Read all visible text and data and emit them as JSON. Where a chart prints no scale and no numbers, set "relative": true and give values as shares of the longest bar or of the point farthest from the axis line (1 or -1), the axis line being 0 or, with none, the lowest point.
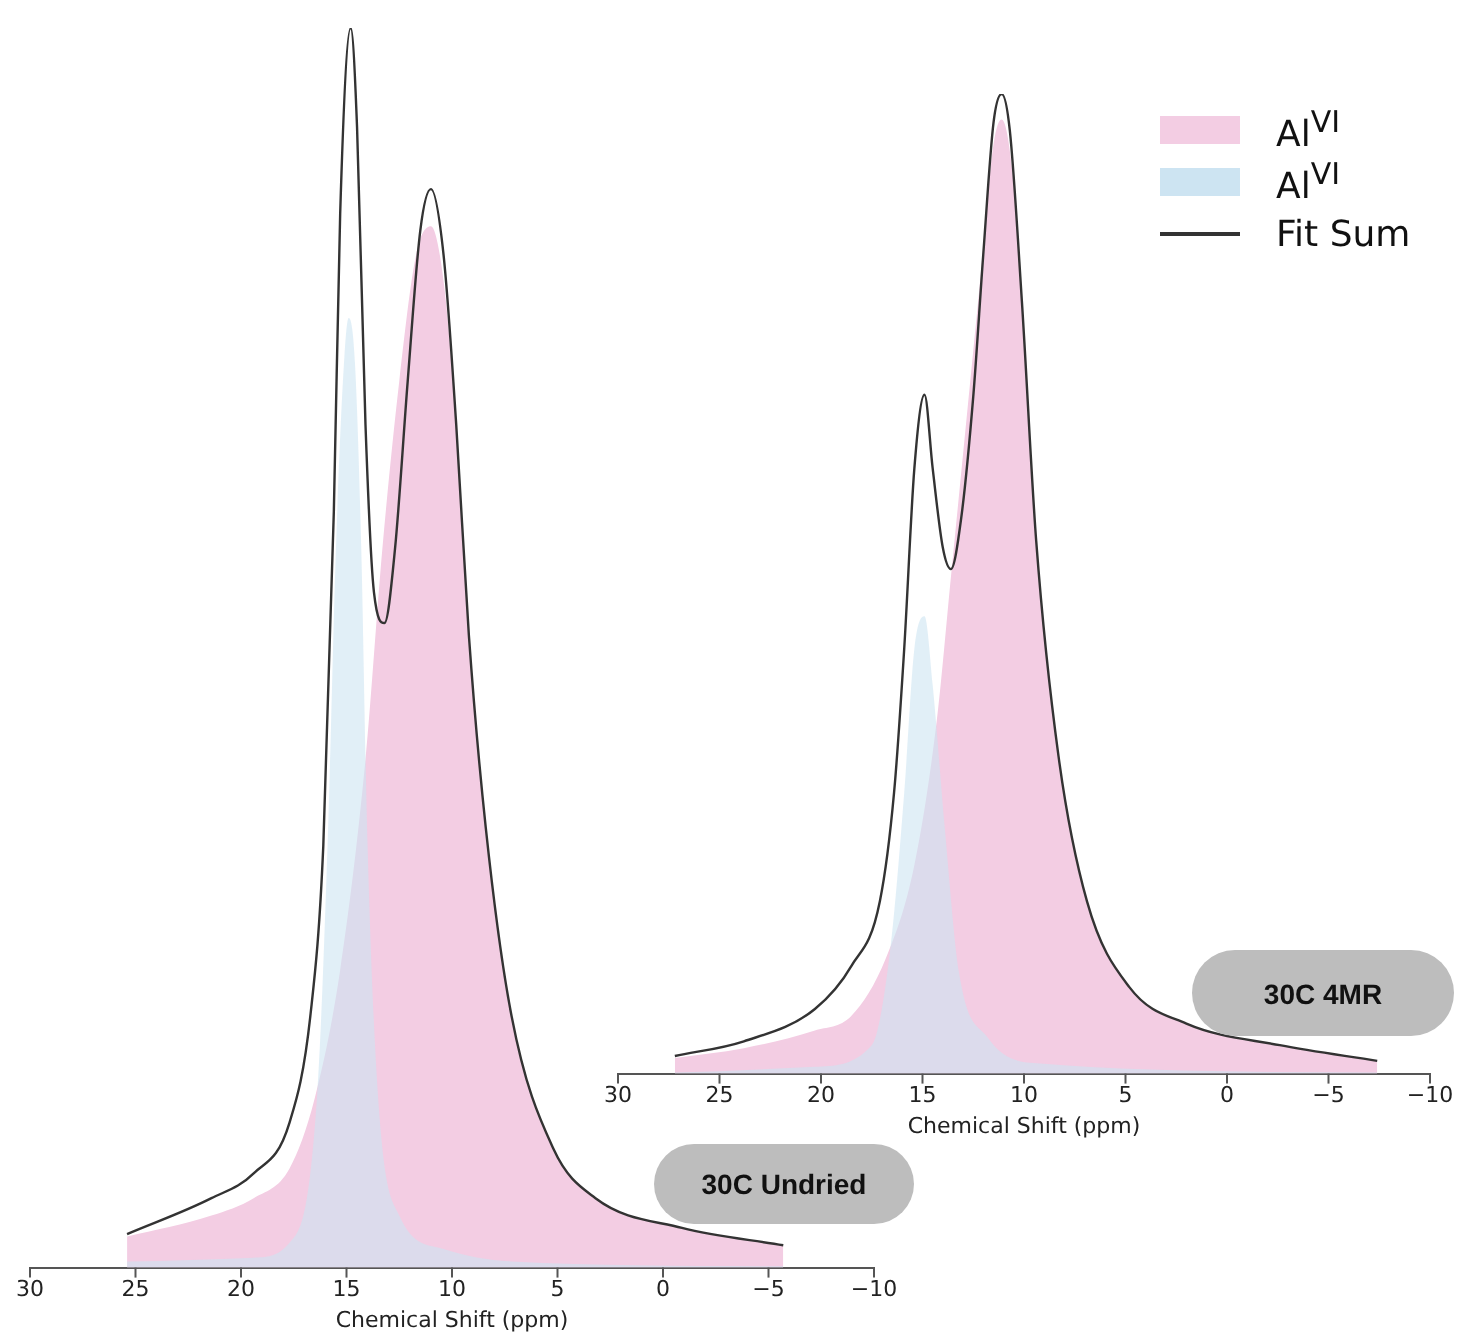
{
  "chart_data": [
    {
      "type": "area",
      "relative": true,
      "xlabel": "Chemical Shift (ppm)",
      "xlim": [
        30,
        -10
      ],
      "xticks": [
        30,
        25,
        20,
        15,
        10,
        5,
        0,
        -5,
        -10
      ],
      "tick_labels": "x",
      "grid": false,
      "annotations": [
        "30C Undried"
      ],
      "series": [
        {
          "type": "area",
          "color": "#f3cde3",
          "x": [
            25.4,
            21.4,
            19.4,
            17.7,
            16.5,
            15.3,
            14.1,
            13.3,
            12.5,
            11.7,
            11.0,
            10.4,
            9.8,
            9.2,
            8.4,
            7.2,
            5.2,
            3.2,
            -0.9,
            -5.7
          ],
          "values": [
            0.025,
            0.042,
            0.056,
            0.08,
            0.137,
            0.24,
            0.41,
            0.58,
            0.715,
            0.817,
            0.84,
            0.796,
            0.68,
            0.51,
            0.355,
            0.205,
            0.096,
            0.056,
            0.032,
            0.018
          ]
        },
        {
          "type": "area",
          "color": "#cde4f2",
          "x": [
            25.4,
            19.4,
            17.7,
            16.4,
            15.9,
            15.5,
            15.1,
            14.9,
            14.6,
            14.3,
            14.0,
            13.5,
            12.5,
            10.4,
            7.2,
            -5.7
          ],
          "values": [
            0.005,
            0.008,
            0.02,
            0.137,
            0.34,
            0.58,
            0.735,
            0.766,
            0.73,
            0.58,
            0.34,
            0.137,
            0.042,
            0.015,
            0.005,
            0.001
          ]
        },
        {
          "type": "line",
          "color": "#333333",
          "x": [
            25.4,
            21.4,
            19.4,
            17.7,
            16.7,
            16.1,
            15.6,
            15.3,
            14.8,
            14.5,
            14.1,
            13.7,
            13.2,
            12.7,
            12.1,
            11.5,
            11.0,
            10.4,
            9.8,
            9.2,
            8.4,
            7.2,
            5.2,
            3.2,
            -0.9,
            -5.7
          ],
          "values": [
            0.027,
            0.056,
            0.076,
            0.117,
            0.205,
            0.34,
            0.61,
            0.85,
            1.0,
            0.92,
            0.68,
            0.545,
            0.52,
            0.58,
            0.715,
            0.837,
            0.87,
            0.817,
            0.68,
            0.51,
            0.355,
            0.205,
            0.096,
            0.056,
            0.032,
            0.018
          ]
        }
      ]
    },
    {
      "type": "area",
      "relative": true,
      "xlabel": "Chemical Shift (ppm)",
      "xlim": [
        30,
        -10
      ],
      "xticks": [
        30,
        25,
        20,
        15,
        10,
        5,
        0,
        -5,
        -10
      ],
      "tick_labels": "x",
      "grid": false,
      "legend": "top right",
      "annotations": [
        "30C 4MR"
      ],
      "series": [
        {
          "type": "area",
          "name": "Al$^{VI}$",
          "color": "#f3cde3",
          "x": [
            27.2,
            23.8,
            20.3,
            18.5,
            16.8,
            15.4,
            14.3,
            13.6,
            12.9,
            12.2,
            11.5,
            11.1,
            10.6,
            10.1,
            9.4,
            8.3,
            6.9,
            4.8,
            2.0,
            -2.6,
            -7.4
          ],
          "values": [
            0.016,
            0.026,
            0.044,
            0.059,
            0.118,
            0.213,
            0.36,
            0.507,
            0.654,
            0.801,
            0.949,
            0.974,
            0.926,
            0.787,
            0.544,
            0.324,
            0.176,
            0.088,
            0.051,
            0.029,
            0.013
          ]
        },
        {
          "type": "area",
          "name": "Al$^{VI}$",
          "color": "#cde4f2",
          "x": [
            27.2,
            20.3,
            17.5,
            16.6,
            15.9,
            15.4,
            14.9,
            14.5,
            13.9,
            13.2,
            11.8,
            9.7,
            -7.4
          ],
          "values": [
            0.001,
            0.007,
            0.029,
            0.125,
            0.287,
            0.434,
            0.467,
            0.397,
            0.25,
            0.103,
            0.037,
            0.011,
            0.001
          ]
        },
        {
          "type": "line",
          "name": "Fit Sum",
          "color": "#333333",
          "x": [
            27.2,
            23.8,
            20.3,
            18.5,
            17.1,
            16.4,
            15.9,
            15.4,
            14.9,
            14.5,
            14.0,
            13.6,
            13.1,
            12.5,
            12.0,
            11.5,
            11.1,
            10.7,
            10.1,
            9.4,
            8.3,
            6.9,
            4.8,
            2.0,
            -2.6,
            -7.4
          ],
          "values": [
            0.018,
            0.033,
            0.066,
            0.11,
            0.176,
            0.287,
            0.434,
            0.618,
            0.693,
            0.618,
            0.537,
            0.515,
            0.566,
            0.691,
            0.838,
            0.971,
            1.0,
            0.963,
            0.787,
            0.544,
            0.324,
            0.176,
            0.088,
            0.051,
            0.029,
            0.013
          ]
        }
      ]
    }
  ]
}
